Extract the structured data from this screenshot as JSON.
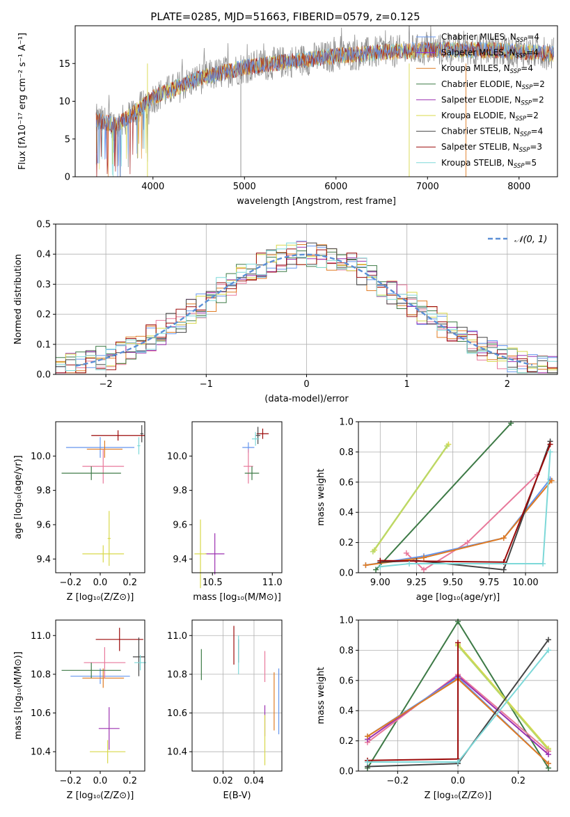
{
  "chart_data": [
    {
      "id": "spectrum",
      "type": "line",
      "title": "PLATE=0285, MJD=51663, FIBERID=0579, z=0.125",
      "xlabel": "wavelength [Angstrom, rest frame]",
      "ylabel": "Flux [fλ10⁻¹⁷ erg cm⁻² s⁻¹ A⁻¹]",
      "xlim": [
        3150,
        8420
      ],
      "ylim": [
        0,
        20
      ],
      "xticks": [
        4000,
        5000,
        6000,
        7000,
        8000
      ],
      "yticks": [
        0,
        5,
        10,
        15
      ],
      "grid": false,
      "legend_placement": "right",
      "legend": [
        {
          "label": "Chabrier MILES, N",
          "sub": "SSP",
          "tail": "=4",
          "color": "#6495ed"
        },
        {
          "label": "Salpeter MILES, N",
          "sub": "SSP",
          "tail": "=4",
          "color": "#8a2be2"
        },
        {
          "label": "Kroupa MILES, N",
          "sub": "SSP",
          "tail": "=4",
          "color": "#e07b22"
        },
        {
          "label": "Chabrier ELODIE, N",
          "sub": "SSP",
          "tail": "=2",
          "color": "#3d7a46"
        },
        {
          "label": "Salpeter ELODIE, N",
          "sub": "SSP",
          "tail": "=2",
          "color": "#9b30b0"
        },
        {
          "label": "Kroupa ELODIE, N",
          "sub": "SSP",
          "tail": "=2",
          "color": "#d8d84a"
        },
        {
          "label": "Chabrier STELIB, N",
          "sub": "SSP",
          "tail": "=4",
          "color": "#444444"
        },
        {
          "label": "Salpeter STELIB, N",
          "sub": "SSP",
          "tail": "=3",
          "color": "#9b0a0a"
        },
        {
          "label": "Kroupa STELIB, N",
          "sub": "SSP",
          "tail": "=5",
          "color": "#7dd8d8"
        }
      ],
      "continuum_wavelength": [
        3380,
        3600,
        3800,
        4000,
        4200,
        4500,
        5000,
        5500,
        6000,
        6500,
        7000,
        7500,
        8000,
        8350
      ],
      "continuum_flux": [
        7.5,
        6.8,
        8.5,
        10.5,
        11.5,
        13.0,
        14.5,
        15.3,
        16.0,
        16.5,
        16.8,
        16.8,
        16.6,
        16.3
      ]
    },
    {
      "id": "residual-histogram",
      "type": "bar",
      "xlabel": "(data-model)/error",
      "ylabel": "Normed distribution",
      "xlim": [
        -2.5,
        2.5
      ],
      "ylim": [
        0,
        0.5
      ],
      "xticks": [
        -2,
        -1,
        0,
        1,
        2
      ],
      "yticks": [
        0.0,
        0.1,
        0.2,
        0.3,
        0.4,
        0.5
      ],
      "grid": true,
      "legend_placement": "top-right",
      "legend": [
        {
          "label": "𝒩(0, 1)",
          "style": "dashed",
          "color": "#5b8fd6"
        }
      ],
      "bin_width": 0.1,
      "series_colors": [
        "#6495ed",
        "#e8799b",
        "#e07b22",
        "#3d7a46",
        "#9b30b0",
        "#d8d84a",
        "#444444",
        "#9b0a0a",
        "#7dd8d8"
      ]
    },
    {
      "id": "age-vs-Z",
      "type": "scatter",
      "xlabel": "Z [log₁₀(Z/Z⊙)]",
      "ylabel": "age  [log₁₀(age/yr)]",
      "xlim": [
        -0.3,
        0.3
      ],
      "ylim": [
        9.32,
        10.2
      ],
      "xticks": [
        -0.2,
        0.0,
        0.2
      ],
      "yticks": [
        9.4,
        9.6,
        9.8,
        10.0
      ],
      "grid": false,
      "points": [
        {
          "x": 0.0,
          "y": 10.05,
          "xerr": 0.23,
          "yerr": 0.06,
          "color": "#6495ed"
        },
        {
          "x": 0.03,
          "y": 10.04,
          "xerr": 0.12,
          "yerr": 0.05,
          "color": "#e07b22"
        },
        {
          "x": 0.02,
          "y": 9.94,
          "xerr": 0.14,
          "yerr": 0.1,
          "color": "#e8799b"
        },
        {
          "x": -0.06,
          "y": 9.9,
          "xerr": 0.2,
          "yerr": 0.04,
          "color": "#3d7a46"
        },
        {
          "x": 0.28,
          "y": 10.13,
          "xerr": 0.01,
          "yerr": 0.05,
          "color": "#444444"
        },
        {
          "x": 0.12,
          "y": 10.12,
          "xerr": 0.18,
          "yerr": 0.03,
          "color": "#9b0a0a"
        },
        {
          "x": 0.26,
          "y": 10.06,
          "xerr": 0.01,
          "yerr": 0.05,
          "color": "#7dd8d8"
        },
        {
          "x": 0.06,
          "y": 9.52,
          "xerr": 0.01,
          "yerr": 0.16,
          "color": "#d8d84a"
        },
        {
          "x": 0.02,
          "y": 9.43,
          "xerr": 0.14,
          "yerr": 0.05,
          "color": "#d8d84a"
        }
      ]
    },
    {
      "id": "age-vs-mass",
      "type": "scatter",
      "xlabel": "mass [log₁₀(M/M⊙)]",
      "ylabel": "",
      "xlim": [
        10.33,
        11.08
      ],
      "ylim": [
        9.32,
        10.2
      ],
      "xticks": [
        10.5,
        11.0
      ],
      "yticks": [
        9.4,
        9.6,
        9.8,
        10.0
      ],
      "grid": false,
      "points": [
        {
          "x": 10.8,
          "y": 10.05,
          "xerr": 0.05,
          "yerr": 0.03,
          "color": "#6495ed"
        },
        {
          "x": 10.8,
          "y": 9.94,
          "xerr": 0.04,
          "yerr": 0.1,
          "color": "#e8799b"
        },
        {
          "x": 10.83,
          "y": 9.9,
          "xerr": 0.06,
          "yerr": 0.04,
          "color": "#3d7a46"
        },
        {
          "x": 10.92,
          "y": 10.13,
          "xerr": 0.05,
          "yerr": 0.03,
          "color": "#9b0a0a"
        },
        {
          "x": 10.88,
          "y": 10.12,
          "xerr": 0.02,
          "yerr": 0.05,
          "color": "#444444"
        },
        {
          "x": 10.86,
          "y": 10.1,
          "xerr": 0.03,
          "yerr": 0.04,
          "color": "#7dd8d8"
        },
        {
          "x": 10.52,
          "y": 9.43,
          "xerr": 0.08,
          "yerr": 0.12,
          "color": "#9b30b0"
        },
        {
          "x": 10.4,
          "y": 9.43,
          "xerr": 0.05,
          "yerr": 0.2,
          "color": "#d8d84a"
        }
      ]
    },
    {
      "id": "mass-weight-vs-age",
      "type": "line",
      "xlabel": "age  [log₁₀(age/yr)]",
      "ylabel": "mass weight",
      "xlim": [
        8.85,
        10.22
      ],
      "ylim": [
        0,
        1
      ],
      "xticks": [
        9.0,
        9.25,
        9.5,
        9.75,
        10.0
      ],
      "yticks": [
        0.0,
        0.2,
        0.4,
        0.6,
        0.8,
        1.0
      ],
      "grid": true,
      "series": [
        {
          "color": "#d8d84a",
          "x": [
            8.96,
            9.47
          ],
          "y": [
            0.15,
            0.85
          ]
        },
        {
          "color": "#b8d86a",
          "x": [
            8.95,
            9.46
          ],
          "y": [
            0.14,
            0.84
          ]
        },
        {
          "color": "#3d7a46",
          "x": [
            8.97,
            9.9
          ],
          "y": [
            0.02,
            0.99
          ]
        },
        {
          "color": "#e8799b",
          "x": [
            9.18,
            9.3,
            9.6,
            10.08
          ],
          "y": [
            0.13,
            0.02,
            0.2,
            0.65
          ]
        },
        {
          "color": "#6495ed",
          "x": [
            8.9,
            9.3,
            9.85,
            10.17
          ],
          "y": [
            0.05,
            0.11,
            0.23,
            0.62
          ]
        },
        {
          "color": "#e07b22",
          "x": [
            8.9,
            9.3,
            9.85,
            10.18
          ],
          "y": [
            0.05,
            0.1,
            0.23,
            0.61
          ]
        },
        {
          "color": "#444444",
          "x": [
            9.0,
            9.25,
            9.85,
            10.17
          ],
          "y": [
            0.07,
            0.08,
            0.02,
            0.87
          ]
        },
        {
          "color": "#9b0a0a",
          "x": [
            9.0,
            9.85,
            10.17
          ],
          "y": [
            0.08,
            0.07,
            0.85
          ]
        },
        {
          "color": "#7dd8d8",
          "x": [
            9.0,
            9.2,
            10.12,
            10.17
          ],
          "y": [
            0.04,
            0.06,
            0.06,
            0.8
          ]
        }
      ]
    },
    {
      "id": "mass-vs-Z",
      "type": "scatter",
      "xlabel": "Z [log₁₀(Z/Z⊙)]",
      "ylabel": "mass [log₁₀(M/M⊙)]",
      "xlim": [
        -0.3,
        0.3
      ],
      "ylim": [
        10.3,
        11.08
      ],
      "xticks": [
        -0.2,
        0.0,
        0.2
      ],
      "yticks": [
        10.4,
        10.6,
        10.8,
        11.0
      ],
      "grid": false,
      "points": [
        {
          "x": 0.0,
          "y": 10.79,
          "xerr": 0.2,
          "yerr": 0.04,
          "color": "#6495ed"
        },
        {
          "x": 0.02,
          "y": 10.78,
          "xerr": 0.14,
          "yerr": 0.05,
          "color": "#e07b22"
        },
        {
          "x": 0.03,
          "y": 10.86,
          "xerr": 0.14,
          "yerr": 0.08,
          "color": "#e8799b"
        },
        {
          "x": -0.06,
          "y": 10.82,
          "xerr": 0.2,
          "yerr": 0.04,
          "color": "#3d7a46"
        },
        {
          "x": 0.13,
          "y": 10.98,
          "xerr": 0.16,
          "yerr": 0.06,
          "color": "#9b0a0a"
        },
        {
          "x": 0.26,
          "y": 10.89,
          "xerr": 0.04,
          "yerr": 0.1,
          "color": "#444444"
        },
        {
          "x": 0.27,
          "y": 10.86,
          "xerr": 0.04,
          "yerr": 0.04,
          "color": "#7dd8d8"
        },
        {
          "x": 0.06,
          "y": 10.52,
          "xerr": 0.07,
          "yerr": 0.11,
          "color": "#9b30b0"
        },
        {
          "x": 0.05,
          "y": 10.4,
          "xerr": 0.12,
          "yerr": 0.06,
          "color": "#d8d84a"
        }
      ]
    },
    {
      "id": "mass-vs-EBV",
      "type": "scatter",
      "xlabel": "E(B-V)",
      "ylabel": "",
      "xlim": [
        0.0,
        0.058
      ],
      "ylim": [
        10.3,
        11.08
      ],
      "xticks": [
        0.02,
        0.04
      ],
      "yticks": [
        10.4,
        10.6,
        10.8,
        11.0
      ],
      "grid": true,
      "points": [
        {
          "x": 0.006,
          "y": 10.85,
          "yerr": 0.08,
          "color": "#3d7a46"
        },
        {
          "x": 0.027,
          "y": 10.95,
          "yerr": 0.1,
          "color": "#9b0a0a"
        },
        {
          "x": 0.03,
          "y": 10.92,
          "yerr": 0.06,
          "color": "#444444"
        },
        {
          "x": 0.03,
          "y": 10.9,
          "yerr": 0.1,
          "color": "#7dd8d8"
        },
        {
          "x": 0.047,
          "y": 10.84,
          "yerr": 0.08,
          "color": "#e8799b"
        },
        {
          "x": 0.047,
          "y": 10.56,
          "yerr": 0.08,
          "color": "#9b30b0"
        },
        {
          "x": 0.047,
          "y": 10.46,
          "yerr": 0.13,
          "color": "#d8d84a"
        },
        {
          "x": 0.053,
          "y": 10.66,
          "yerr": 0.15,
          "color": "#e07b22"
        },
        {
          "x": 0.056,
          "y": 10.66,
          "yerr": 0.17,
          "color": "#6495ed"
        }
      ]
    },
    {
      "id": "mass-weight-vs-Z",
      "type": "line",
      "xlabel": "Z [log₁₀(Z/Z⊙)]",
      "ylabel": "mass weight",
      "xlim": [
        -0.33,
        0.33
      ],
      "ylim": [
        0,
        1
      ],
      "xticks": [
        -0.2,
        0.0,
        0.2
      ],
      "yticks": [
        0.0,
        0.2,
        0.4,
        0.6,
        0.8,
        1.0
      ],
      "grid": true,
      "series": [
        {
          "color": "#3d7a46",
          "x": [
            -0.3,
            0.0,
            0.3
          ],
          "y": [
            0.02,
            0.99,
            0.02
          ]
        },
        {
          "color": "#d8d84a",
          "x": [
            0.0,
            0.3
          ],
          "y": [
            0.84,
            0.15
          ]
        },
        {
          "color": "#b8d86a",
          "x": [
            0.0,
            0.3
          ],
          "y": [
            0.83,
            0.14
          ]
        },
        {
          "color": "#e8799b",
          "x": [
            -0.3,
            0.0,
            0.3
          ],
          "y": [
            0.19,
            0.64,
            0.13
          ]
        },
        {
          "color": "#9b30b0",
          "x": [
            -0.3,
            0.0,
            0.3
          ],
          "y": [
            0.21,
            0.63,
            0.11
          ]
        },
        {
          "color": "#6495ed",
          "x": [
            -0.3,
            0.0,
            0.3
          ],
          "y": [
            0.23,
            0.62,
            0.05
          ]
        },
        {
          "color": "#e07b22",
          "x": [
            -0.3,
            0.0,
            0.3
          ],
          "y": [
            0.23,
            0.61,
            0.05
          ]
        },
        {
          "color": "#444444",
          "x": [
            -0.3,
            0.0,
            0.3
          ],
          "y": [
            0.03,
            0.05,
            0.87
          ]
        },
        {
          "color": "#9b0a0a",
          "x": [
            -0.3,
            0.0,
            0.0
          ],
          "y": [
            0.07,
            0.08,
            0.85
          ]
        },
        {
          "color": "#7dd8d8",
          "x": [
            -0.3,
            0.0,
            0.3
          ],
          "y": [
            0.06,
            0.06,
            0.8
          ]
        }
      ]
    }
  ]
}
